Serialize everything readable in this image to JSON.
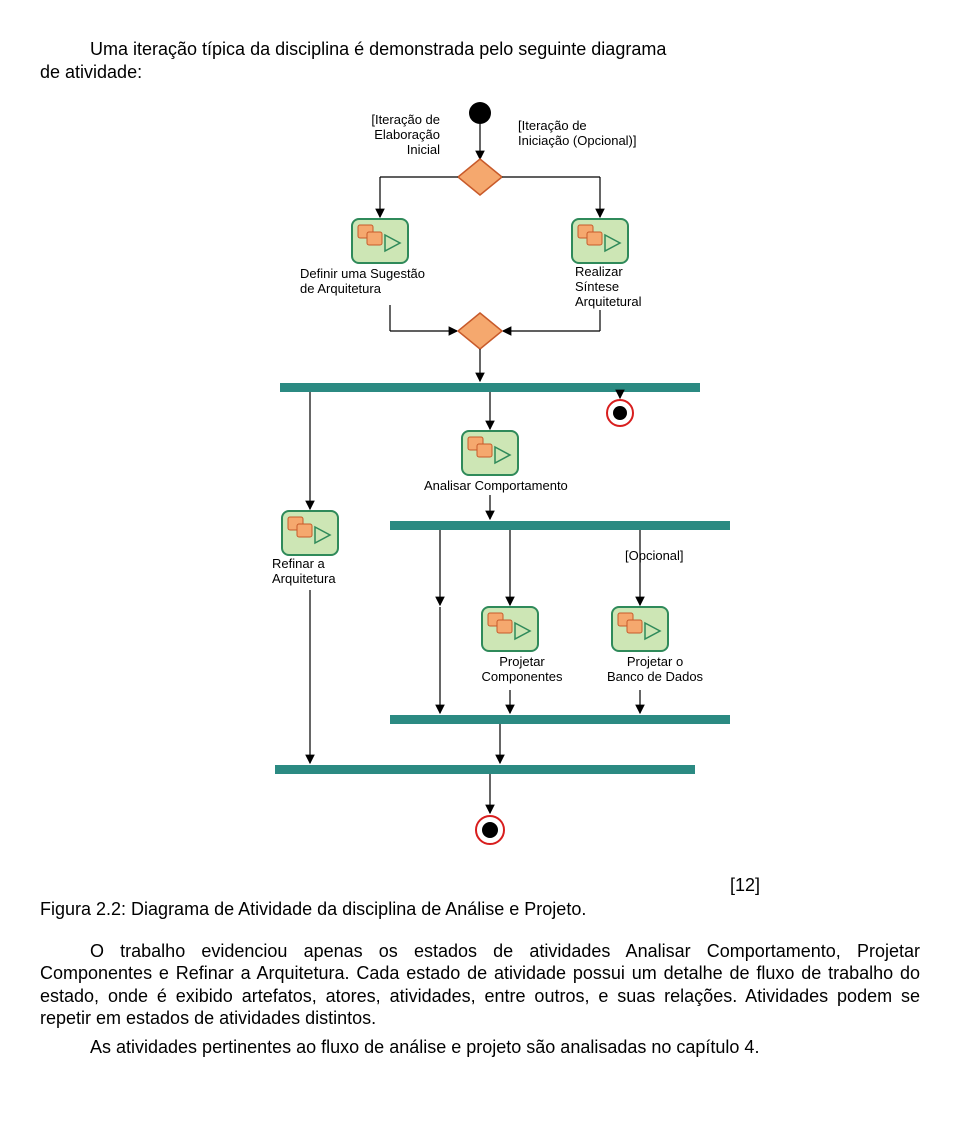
{
  "intro": {
    "line1": "Uma iteração típica da disciplina é demonstrada pelo seguinte diagrama",
    "line2": "de atividade:"
  },
  "diagram": {
    "colors": {
      "activity_fill": "#cde6b5",
      "activity_stroke": "#2f8a5a",
      "icon_fill": "#f5a86e",
      "icon_stroke": "#c85a2a",
      "decision_fill": "#f5a86e",
      "decision_stroke": "#c85a2a",
      "bar_fill": "#2b8a82",
      "initial_fill": "#000000",
      "final_outer_stroke": "#d81e1e",
      "line_color": "#000000",
      "text_color": "#000000"
    },
    "labels": {
      "guard_left": "[Iteração de\nElaboração\nInicial",
      "guard_right": "[Iteração de\nIniciação (Opcional)]",
      "act_definir": "Definir uma Sugestão\nde Arquitetura",
      "act_realizar": "Realizar\nSíntese\nArquitetural",
      "act_analisar": "Analisar Comportamento",
      "act_refinar": "Refinar a\nArquitetura",
      "opcional": "[Opcional]",
      "act_proj_comp": "Projetar\nComponentes",
      "act_proj_bd": "Projetar o\nBanco de Dados"
    }
  },
  "caption": {
    "ref": "[12]",
    "text": "Figura 2.2: Diagrama de Atividade da disciplina de Análise e Projeto."
  },
  "body": {
    "p1": "O trabalho evidenciou apenas os estados de atividades Analisar Comportamento, Projetar Componentes e Refinar a Arquitetura. Cada estado de atividade possui um detalhe de fluxo de trabalho do estado, onde é exibido artefatos, atores, atividades, entre outros, e suas relações. Atividades podem se repetir em estados de atividades distintos.",
    "p2": "As atividades pertinentes ao fluxo de análise e projeto são analisadas no capítulo 4."
  }
}
